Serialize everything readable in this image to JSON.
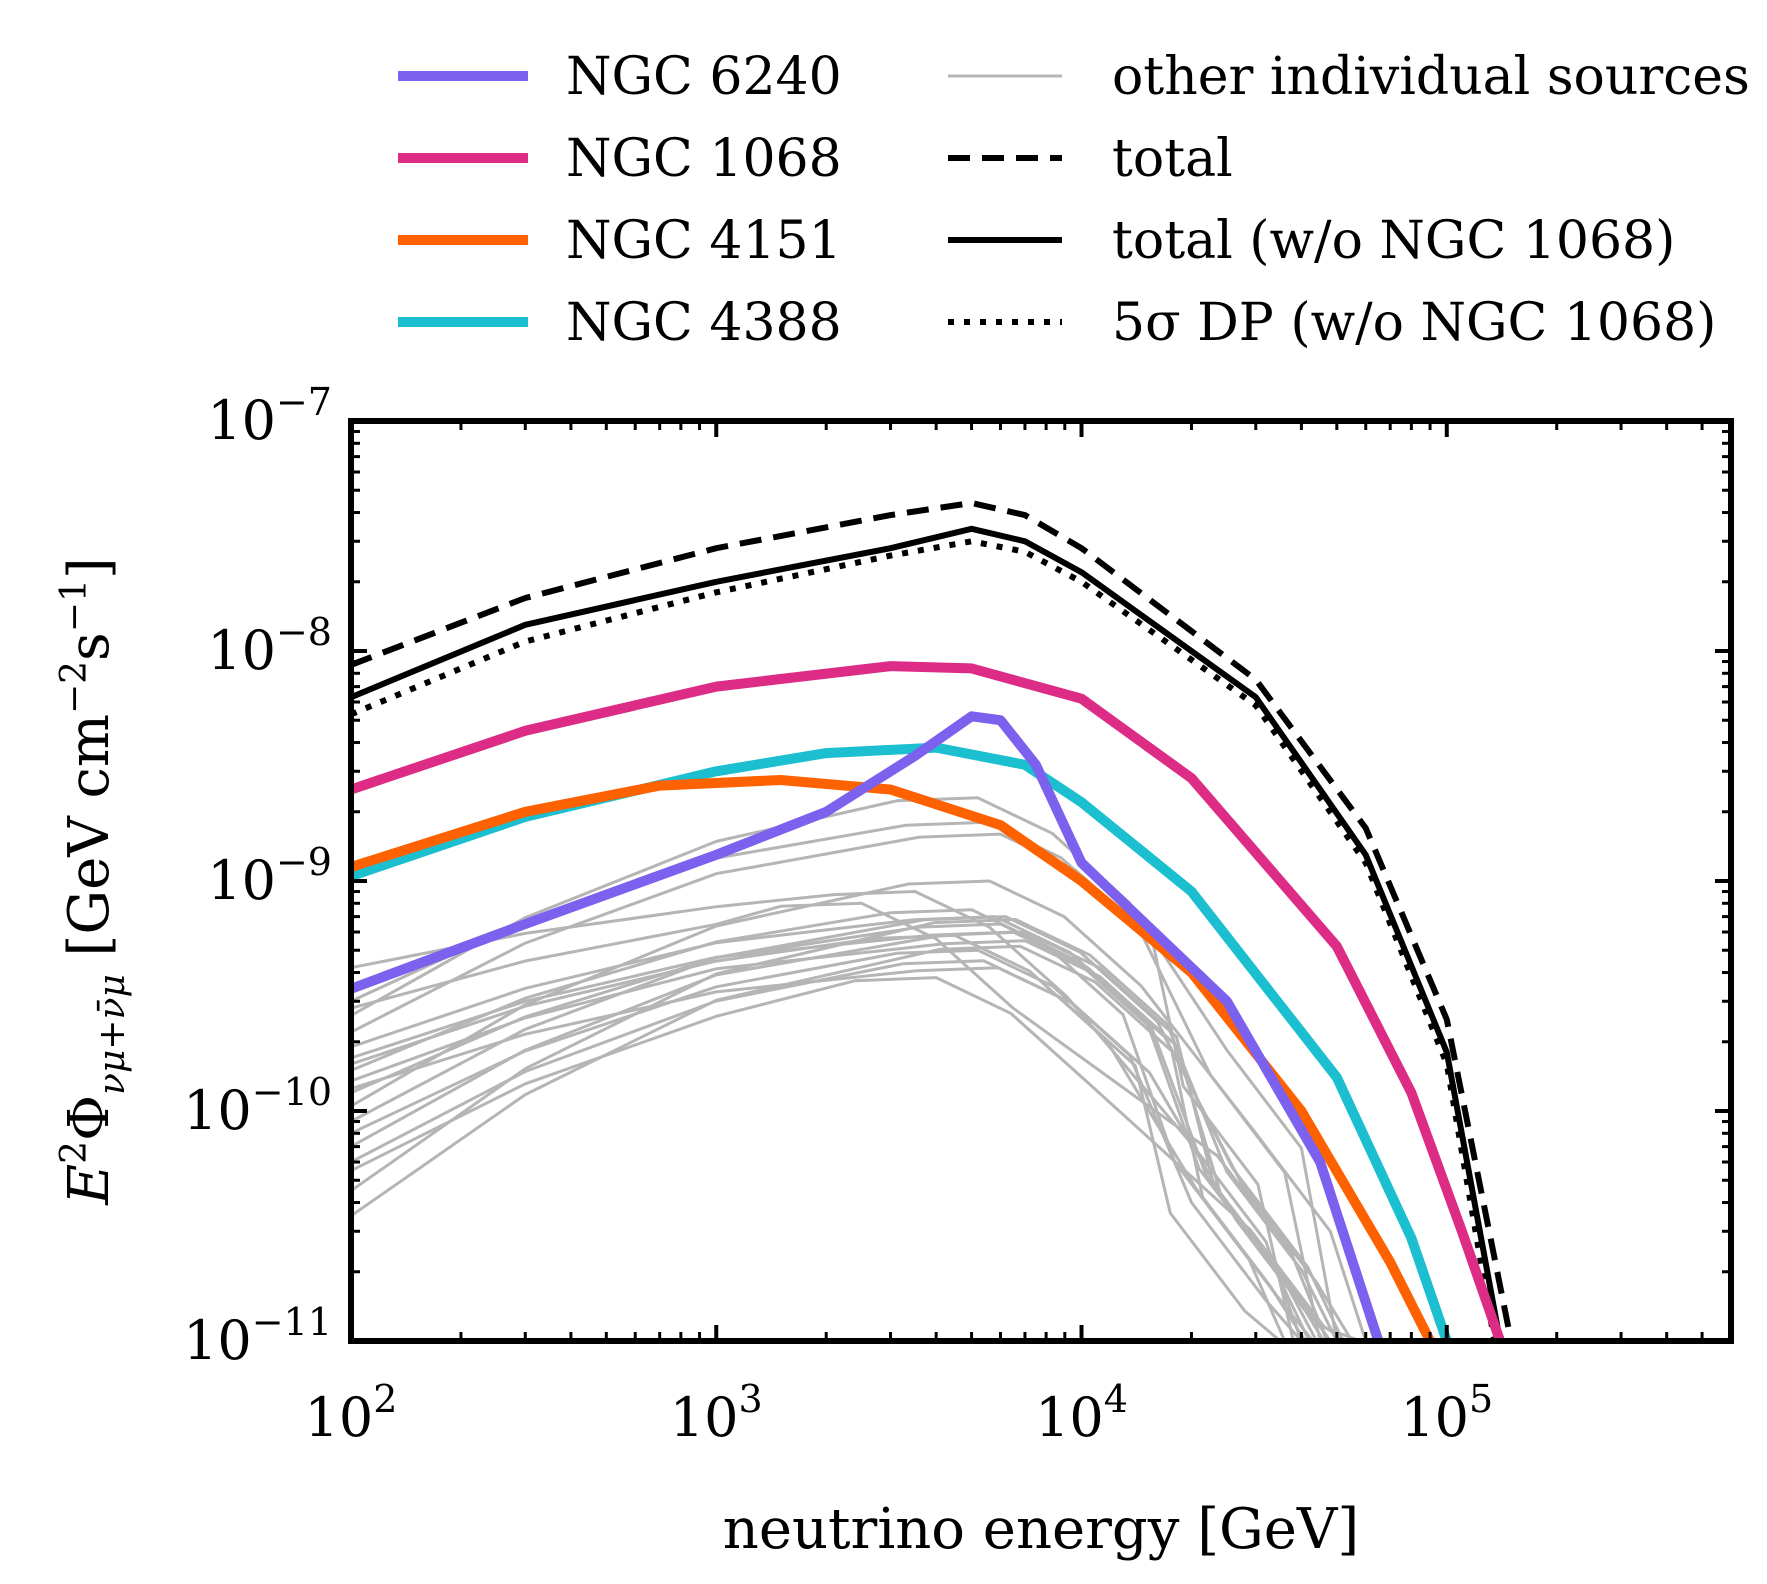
{
  "chart_data": {
    "type": "line",
    "xscale": "log",
    "yscale": "log",
    "xlim": [
      100,
      600000
    ],
    "ylim": [
      1e-11,
      1e-07
    ],
    "xlabel": "neutrino energy [GeV]",
    "ylabel_parts": {
      "lead": "E",
      "lead_sup": "2",
      "phi": "Φ",
      "phi_sub": "νμ+ν̄μ",
      "unit_open": " [GeV cm",
      "unit_sup1": "−2",
      "unit_mid": "s",
      "unit_sup2": "−1",
      "unit_close": "]"
    },
    "x_ticks": [
      {
        "base": "10",
        "exp": "2",
        "value": 100
      },
      {
        "base": "10",
        "exp": "3",
        "value": 1000
      },
      {
        "base": "10",
        "exp": "4",
        "value": 10000
      },
      {
        "base": "10",
        "exp": "5",
        "value": 100000
      }
    ],
    "y_ticks": [
      {
        "base": "10",
        "exp": "−11",
        "value": 1e-11
      },
      {
        "base": "10",
        "exp": "−10",
        "value": 1e-10
      },
      {
        "base": "10",
        "exp": "−9",
        "value": 1e-09
      },
      {
        "base": "10",
        "exp": "−8",
        "value": 1e-08
      },
      {
        "base": "10",
        "exp": "−7",
        "value": 1e-07
      }
    ],
    "legend": [
      {
        "label": "NGC 6240",
        "color": "#7b61ee",
        "style": "solid-thick"
      },
      {
        "label": "NGC 1068",
        "color": "#dc2c86",
        "style": "solid-thick"
      },
      {
        "label": "NGC 4151",
        "color": "#fe6100",
        "style": "solid-thick"
      },
      {
        "label": "NGC 4388",
        "color": "#1cbfd0",
        "style": "solid-thick"
      },
      {
        "label": "other individual sources",
        "color": "#b5b5b5",
        "style": "solid-thin"
      },
      {
        "label": "total",
        "color": "#000000",
        "style": "dashed"
      },
      {
        "label": "total (w/o NGC 1068)",
        "color": "#000000",
        "style": "solid"
      },
      {
        "label": "5σ DP (w/o NGC 1068)",
        "color": "#000000",
        "style": "dotted"
      }
    ],
    "series": [
      {
        "name": "total",
        "color": "#000000",
        "style": "dashed",
        "x": [
          100,
          300,
          1000,
          3000,
          5000,
          7000,
          10000,
          30000,
          60000,
          100000,
          150000
        ],
        "y": [
          8.7e-09,
          1.7e-08,
          2.8e-08,
          3.9e-08,
          4.4e-08,
          3.9e-08,
          2.8e-08,
          7.5e-09,
          1.7e-09,
          2.5e-10,
          1e-11
        ]
      },
      {
        "name": "total (w/o NGC 1068)",
        "color": "#000000",
        "style": "solid",
        "x": [
          100,
          300,
          1000,
          3000,
          5000,
          7000,
          10000,
          30000,
          60000,
          100000,
          140000
        ],
        "y": [
          6.3e-09,
          1.3e-08,
          2e-08,
          2.8e-08,
          3.4e-08,
          3e-08,
          2.2e-08,
          6.3e-09,
          1.3e-09,
          1.8e-10,
          1e-11
        ]
      },
      {
        "name": "5σ DP (w/o NGC 1068)",
        "color": "#000000",
        "style": "dotted",
        "x": [
          100,
          300,
          1000,
          3000,
          5000,
          7000,
          10000,
          30000,
          60000,
          100000,
          135000
        ],
        "y": [
          5.3e-09,
          1.1e-08,
          1.8e-08,
          2.6e-08,
          3e-08,
          2.7e-08,
          2e-08,
          5.8e-09,
          1.2e-09,
          1.6e-10,
          1e-11
        ]
      },
      {
        "name": "NGC 1068",
        "color": "#dc2c86",
        "style": "solid-thick",
        "x": [
          100,
          300,
          1000,
          3000,
          5000,
          10000,
          20000,
          50000,
          80000,
          110000,
          140000
        ],
        "y": [
          2.5e-09,
          4.5e-09,
          7e-09,
          8.6e-09,
          8.4e-09,
          6.2e-09,
          2.8e-09,
          5.2e-10,
          1.2e-10,
          3e-11,
          1e-11
        ]
      },
      {
        "name": "NGC 4388",
        "color": "#1cbfd0",
        "style": "solid-thick",
        "x": [
          100,
          300,
          1000,
          2000,
          4000,
          7000,
          10000,
          20000,
          50000,
          80000,
          100000
        ],
        "y": [
          1.05e-09,
          1.9e-09,
          3e-09,
          3.6e-09,
          3.8e-09,
          3.2e-09,
          2.2e-09,
          9e-10,
          1.4e-10,
          2.8e-11,
          1e-11
        ]
      },
      {
        "name": "NGC 4151",
        "color": "#fe6100",
        "style": "solid-thick",
        "x": [
          100,
          300,
          700,
          1500,
          3000,
          6000,
          10000,
          20000,
          40000,
          70000,
          90000
        ],
        "y": [
          1.15e-09,
          2e-09,
          2.6e-09,
          2.75e-09,
          2.5e-09,
          1.75e-09,
          1e-09,
          4e-10,
          1e-10,
          2.2e-11,
          1e-11
        ]
      },
      {
        "name": "NGC 6240",
        "color": "#7b61ee",
        "style": "solid-thick",
        "x": [
          100,
          300,
          1000,
          2000,
          3500,
          5000,
          6000,
          7500,
          10000,
          15000,
          25000,
          45000,
          65000
        ],
        "y": [
          3.4e-10,
          6.5e-10,
          1.3e-09,
          2e-09,
          3.5e-09,
          5.2e-09,
          5e-09,
          3.2e-09,
          1.2e-09,
          6.5e-10,
          3e-10,
          6e-11,
          1e-11
        ]
      }
    ]
  }
}
